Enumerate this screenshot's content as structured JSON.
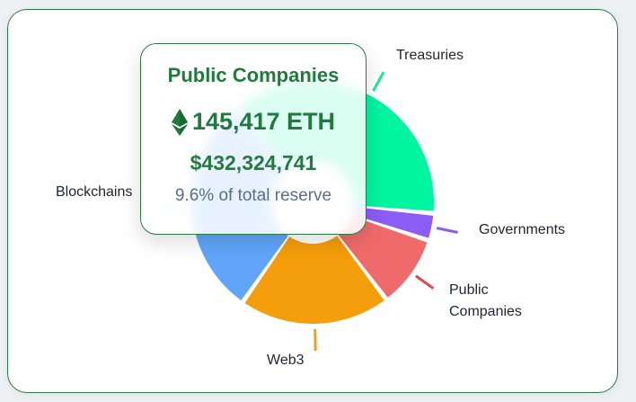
{
  "chart_data": {
    "type": "pie",
    "variant": "donut",
    "title": "",
    "unit": "ETH",
    "categories": [
      "Treasuries",
      "Governments",
      "Public Companies",
      "Web3",
      "Blockchains"
    ],
    "values_pct": [
      37.0,
      3.6,
      9.6,
      20.1,
      29.7
    ],
    "colors": [
      "#00f5a0",
      "#8b5cf6",
      "#ef6b6b",
      "#f59e0b",
      "#60a5fa"
    ],
    "legend_position": "outside labels with leader lines",
    "highlighted": {
      "category": "Public Companies",
      "eth": 145417,
      "usd": 432324741,
      "pct_of_total": 9.6
    }
  },
  "labels": {
    "treasuries": "Treasuries",
    "governments": "Governments",
    "public_companies_line1": "Public",
    "public_companies_line2": "Companies",
    "web3": "Web3",
    "blockchains": "Blockchains"
  },
  "tooltip": {
    "title": "Public Companies",
    "eth_value": "145,417 ETH",
    "usd_value": "$432,324,741",
    "pct_text": "9.6% of total reserve",
    "icon": "ethereum-icon"
  }
}
